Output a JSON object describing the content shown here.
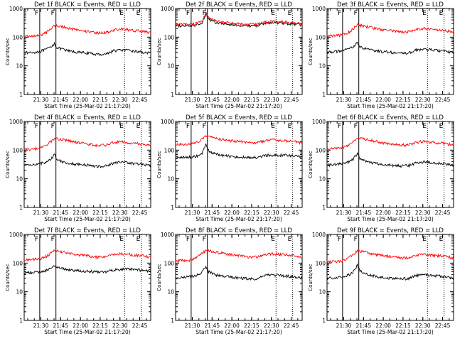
{
  "chart_data": {
    "type": "line",
    "common": {
      "xlabel": "Start Time (25-Mar-02 21:17:20)",
      "ylabel": "Counts/sec",
      "xticks": [
        "21:30",
        "21:45",
        "22:00",
        "22:15",
        "22:30",
        "22:45"
      ],
      "xtick_minutes": [
        12.67,
        27.67,
        42.67,
        57.67,
        72.67,
        87.67
      ],
      "xlim_minutes": [
        0,
        96
      ],
      "ylim": [
        1,
        1000
      ],
      "yscale": "log",
      "yticks": [
        "1",
        "10",
        "100",
        "1000"
      ],
      "markers": [
        {
          "label": "F",
          "minute": 11.8,
          "style": "solid"
        },
        {
          "label": "F",
          "minute": 24.1,
          "style": "solid"
        },
        {
          "label": "E",
          "minute": 76.2,
          "style": "dotted"
        },
        {
          "label": "E",
          "minute": 88.8,
          "style": "dotted"
        }
      ],
      "series_names": [
        "Events",
        "LLD"
      ],
      "series_colors": [
        "#000000",
        "#ff0000"
      ]
    },
    "panels": [
      {
        "title": "Det 1f BLACK = Events, RED = LLD",
        "series": [
          {
            "name": "Events",
            "color": "#000000",
            "x": [
              0,
              8,
              12,
              16,
              20,
              23,
              25,
              27,
              29,
              32,
              40,
              48,
              56,
              62,
              68,
              74,
              82,
              90,
              96
            ],
            "y": [
              28,
              30,
              32,
              36,
              45,
              60,
              42,
              40,
              38,
              34,
              30,
              28,
              25,
              26,
              34,
              36,
              33,
              30,
              27
            ]
          },
          {
            "name": "LLD",
            "color": "#ff0000",
            "x": [
              0,
              8,
              12,
              16,
              20,
              23,
              25,
              27,
              29,
              32,
              40,
              48,
              56,
              62,
              68,
              74,
              82,
              90,
              96
            ],
            "y": [
              105,
              110,
              115,
              140,
              190,
              260,
              250,
              240,
              230,
              215,
              180,
              160,
              140,
              145,
              180,
              190,
              175,
              160,
              140
            ]
          }
        ]
      },
      {
        "title": "Det 2f BLACK = Events, RED = LLD",
        "series": [
          {
            "name": "Events",
            "color": "#000000",
            "x": [
              0,
              8,
              12,
              16,
              20,
              23,
              25,
              27,
              29,
              32,
              40,
              48,
              56,
              62,
              68,
              74,
              82,
              90,
              96
            ],
            "y": [
              250,
              250,
              255,
              270,
              320,
              650,
              450,
              380,
              340,
              310,
              280,
              260,
              250,
              255,
              300,
              320,
              310,
              285,
              265
            ]
          },
          {
            "name": "LLD",
            "color": "#ff0000",
            "x": [
              0,
              8,
              12,
              16,
              20,
              23,
              25,
              27,
              29,
              32,
              40,
              48,
              56,
              62,
              68,
              74,
              82,
              90,
              96
            ],
            "y": [
              280,
              280,
              285,
              300,
              360,
              700,
              500,
              420,
              380,
              350,
              310,
              290,
              280,
              285,
              330,
              350,
              340,
              315,
              290
            ]
          }
        ]
      },
      {
        "title": "Det 3f BLACK = Events, RED = LLD",
        "series": [
          {
            "name": "Events",
            "color": "#000000",
            "x": [
              0,
              8,
              12,
              16,
              20,
              23,
              25,
              27,
              29,
              32,
              40,
              48,
              56,
              62,
              68,
              74,
              82,
              90,
              96
            ],
            "y": [
              30,
              32,
              34,
              38,
              48,
              65,
              45,
              42,
              40,
              36,
              32,
              30,
              27,
              28,
              36,
              38,
              35,
              32,
              29
            ]
          },
          {
            "name": "LLD",
            "color": "#ff0000",
            "x": [
              0,
              8,
              12,
              16,
              20,
              23,
              25,
              27,
              29,
              32,
              40,
              48,
              56,
              62,
              68,
              74,
              82,
              90,
              96
            ],
            "y": [
              110,
              115,
              120,
              145,
              200,
              270,
              260,
              250,
              240,
              225,
              190,
              170,
              150,
              155,
              190,
              200,
              185,
              170,
              150
            ]
          }
        ]
      },
      {
        "title": "Det 4f BLACK = Events, RED = LLD",
        "series": [
          {
            "name": "Events",
            "color": "#000000",
            "x": [
              0,
              8,
              12,
              16,
              20,
              23,
              25,
              27,
              29,
              32,
              40,
              48,
              56,
              62,
              68,
              74,
              82,
              90,
              96
            ],
            "y": [
              30,
              32,
              34,
              38,
              48,
              70,
              48,
              44,
              40,
              36,
              32,
              30,
              27,
              28,
              36,
              38,
              35,
              32,
              29
            ]
          },
          {
            "name": "LLD",
            "color": "#ff0000",
            "x": [
              0,
              8,
              12,
              16,
              20,
              23,
              25,
              27,
              29,
              32,
              40,
              48,
              56,
              62,
              68,
              74,
              82,
              90,
              96
            ],
            "y": [
              105,
              110,
              115,
              140,
              195,
              265,
              255,
              245,
              235,
              220,
              185,
              165,
              145,
              150,
              185,
              195,
              180,
              165,
              145
            ]
          }
        ]
      },
      {
        "title": "Det 5f BLACK = Events, RED = LLD",
        "series": [
          {
            "name": "Events",
            "color": "#000000",
            "x": [
              0,
              8,
              12,
              16,
              20,
              23,
              25,
              27,
              29,
              32,
              40,
              48,
              56,
              62,
              68,
              74,
              82,
              90,
              96
            ],
            "y": [
              55,
              56,
              58,
              62,
              75,
              150,
              95,
              85,
              78,
              70,
              62,
              58,
              54,
              55,
              65,
              68,
              66,
              62,
              58
            ]
          },
          {
            "name": "LLD",
            "color": "#ff0000",
            "x": [
              0,
              8,
              12,
              16,
              20,
              23,
              25,
              27,
              29,
              32,
              40,
              48,
              56,
              62,
              68,
              74,
              82,
              90,
              96
            ],
            "y": [
              160,
              162,
              168,
              190,
              240,
              320,
              300,
              285,
              270,
              250,
              220,
              200,
              180,
              185,
              215,
              225,
              215,
              200,
              180
            ]
          }
        ]
      },
      {
        "title": "Det 6f BLACK = Events, RED = LLD",
        "series": [
          {
            "name": "Events",
            "color": "#000000",
            "x": [
              0,
              8,
              12,
              16,
              20,
              23,
              25,
              27,
              29,
              32,
              40,
              48,
              56,
              62,
              68,
              74,
              82,
              90,
              96
            ],
            "y": [
              30,
              32,
              34,
              38,
              50,
              75,
              50,
              45,
              41,
              37,
              33,
              30,
              28,
              29,
              37,
              39,
              36,
              33,
              30
            ]
          },
          {
            "name": "LLD",
            "color": "#ff0000",
            "x": [
              0,
              8,
              12,
              16,
              20,
              23,
              25,
              27,
              29,
              32,
              40,
              48,
              56,
              62,
              68,
              74,
              82,
              90,
              96
            ],
            "y": [
              110,
              115,
              120,
              145,
              200,
              270,
              260,
              250,
              240,
              225,
              190,
              170,
              150,
              155,
              190,
              200,
              185,
              170,
              150
            ]
          }
        ]
      },
      {
        "title": "Det 7f BLACK = Events, RED = LLD",
        "series": [
          {
            "name": "Events",
            "color": "#000000",
            "x": [
              0,
              8,
              12,
              16,
              20,
              23,
              25,
              27,
              29,
              32,
              40,
              48,
              56,
              62,
              68,
              74,
              82,
              90,
              96
            ],
            "y": [
              45,
              47,
              50,
              55,
              65,
              78,
              72,
              68,
              64,
              60,
              55,
              52,
              48,
              49,
              58,
              62,
              60,
              56,
              52
            ]
          },
          {
            "name": "LLD",
            "color": "#ff0000",
            "x": [
              0,
              8,
              12,
              16,
              20,
              23,
              25,
              27,
              29,
              32,
              40,
              48,
              56,
              62,
              68,
              74,
              82,
              90,
              96
            ],
            "y": [
              130,
              135,
              140,
              165,
              215,
              280,
              270,
              260,
              250,
              235,
              200,
              180,
              160,
              165,
              200,
              210,
              195,
              180,
              160
            ]
          }
        ]
      },
      {
        "title": "Det 8f BLACK = Events, RED = LLD",
        "series": [
          {
            "name": "Events",
            "color": "#000000",
            "x": [
              0,
              8,
              12,
              16,
              20,
              23,
              25,
              27,
              29,
              32,
              40,
              48,
              56,
              62,
              68,
              74,
              82,
              90,
              96
            ],
            "y": [
              30,
              32,
              34,
              38,
              48,
              80,
              50,
              45,
              41,
              37,
              33,
              30,
              28,
              29,
              37,
              39,
              36,
              33,
              30
            ]
          },
          {
            "name": "LLD",
            "color": "#ff0000",
            "x": [
              0,
              8,
              12,
              16,
              20,
              23,
              25,
              27,
              29,
              32,
              40,
              48,
              56,
              62,
              68,
              74,
              82,
              90,
              96
            ],
            "y": [
              120,
              125,
              130,
              155,
              210,
              280,
              270,
              260,
              250,
              235,
              200,
              180,
              160,
              165,
              200,
              210,
              195,
              180,
              160
            ]
          }
        ]
      },
      {
        "title": "Det 9f BLACK = Events, RED = LLD",
        "series": [
          {
            "name": "Events",
            "color": "#000000",
            "x": [
              0,
              8,
              12,
              16,
              20,
              23,
              25,
              27,
              29,
              32,
              40,
              48,
              56,
              62,
              68,
              74,
              82,
              90,
              96
            ],
            "y": [
              30,
              32,
              34,
              38,
              50,
              85,
              52,
              46,
              42,
              38,
              33,
              30,
              28,
              29,
              37,
              39,
              36,
              33,
              30
            ]
          },
          {
            "name": "LLD",
            "color": "#ff0000",
            "x": [
              0,
              8,
              12,
              16,
              20,
              23,
              25,
              27,
              29,
              32,
              40,
              48,
              56,
              62,
              68,
              74,
              82,
              90,
              96
            ],
            "y": [
              110,
              115,
              120,
              145,
              200,
              270,
              260,
              250,
              240,
              225,
              190,
              170,
              150,
              155,
              190,
              200,
              185,
              170,
              150
            ]
          }
        ]
      }
    ]
  }
}
